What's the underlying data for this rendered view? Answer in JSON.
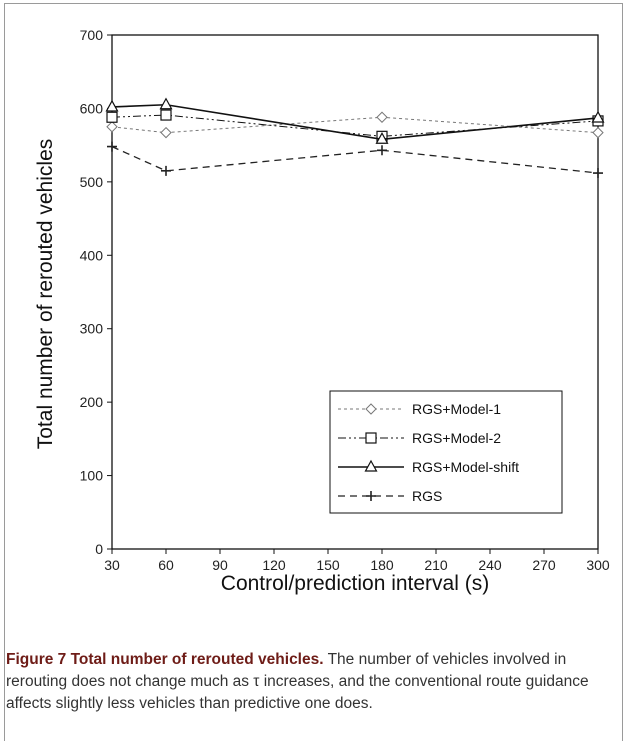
{
  "chart_data": {
    "type": "line",
    "xlabel": "Control/prediction interval (s)",
    "ylabel": "Total number of rerouted vehicles",
    "xlim": [
      30,
      300
    ],
    "ylim": [
      0,
      700
    ],
    "xticks": [
      30,
      60,
      90,
      120,
      150,
      180,
      210,
      240,
      270,
      300
    ],
    "yticks": [
      0,
      100,
      200,
      300,
      400,
      500,
      600,
      700
    ],
    "x": [
      30,
      60,
      180,
      300
    ],
    "series": [
      {
        "name": "RGS+Model-1",
        "values": [
          575,
          567,
          588,
          567
        ],
        "color": "#777777",
        "dash": "3,3",
        "marker": "diamond",
        "width": 1
      },
      {
        "name": "RGS+Model-2",
        "values": [
          588,
          591,
          562,
          583
        ],
        "color": "#111111",
        "dash": "8,3,2,3,2,3",
        "marker": "square",
        "width": 1
      },
      {
        "name": "RGS+Model-shift",
        "values": [
          602,
          605,
          558,
          587
        ],
        "color": "#111111",
        "dash": "",
        "marker": "triangle",
        "width": 1.6
      },
      {
        "name": "RGS",
        "values": [
          548,
          515,
          543,
          512
        ],
        "color": "#222222",
        "dash": "7,5",
        "marker": "plus",
        "width": 1.3
      }
    ],
    "legend_position": "bottom-right",
    "grid": false
  },
  "caption": {
    "label": "Figure 7",
    "title": "Total number of rerouted vehicles.",
    "text": "The number of vehicles involved in rerouting does not change much as τ increases, and the conventional route guidance affects slightly less vehicles than predictive one does."
  }
}
